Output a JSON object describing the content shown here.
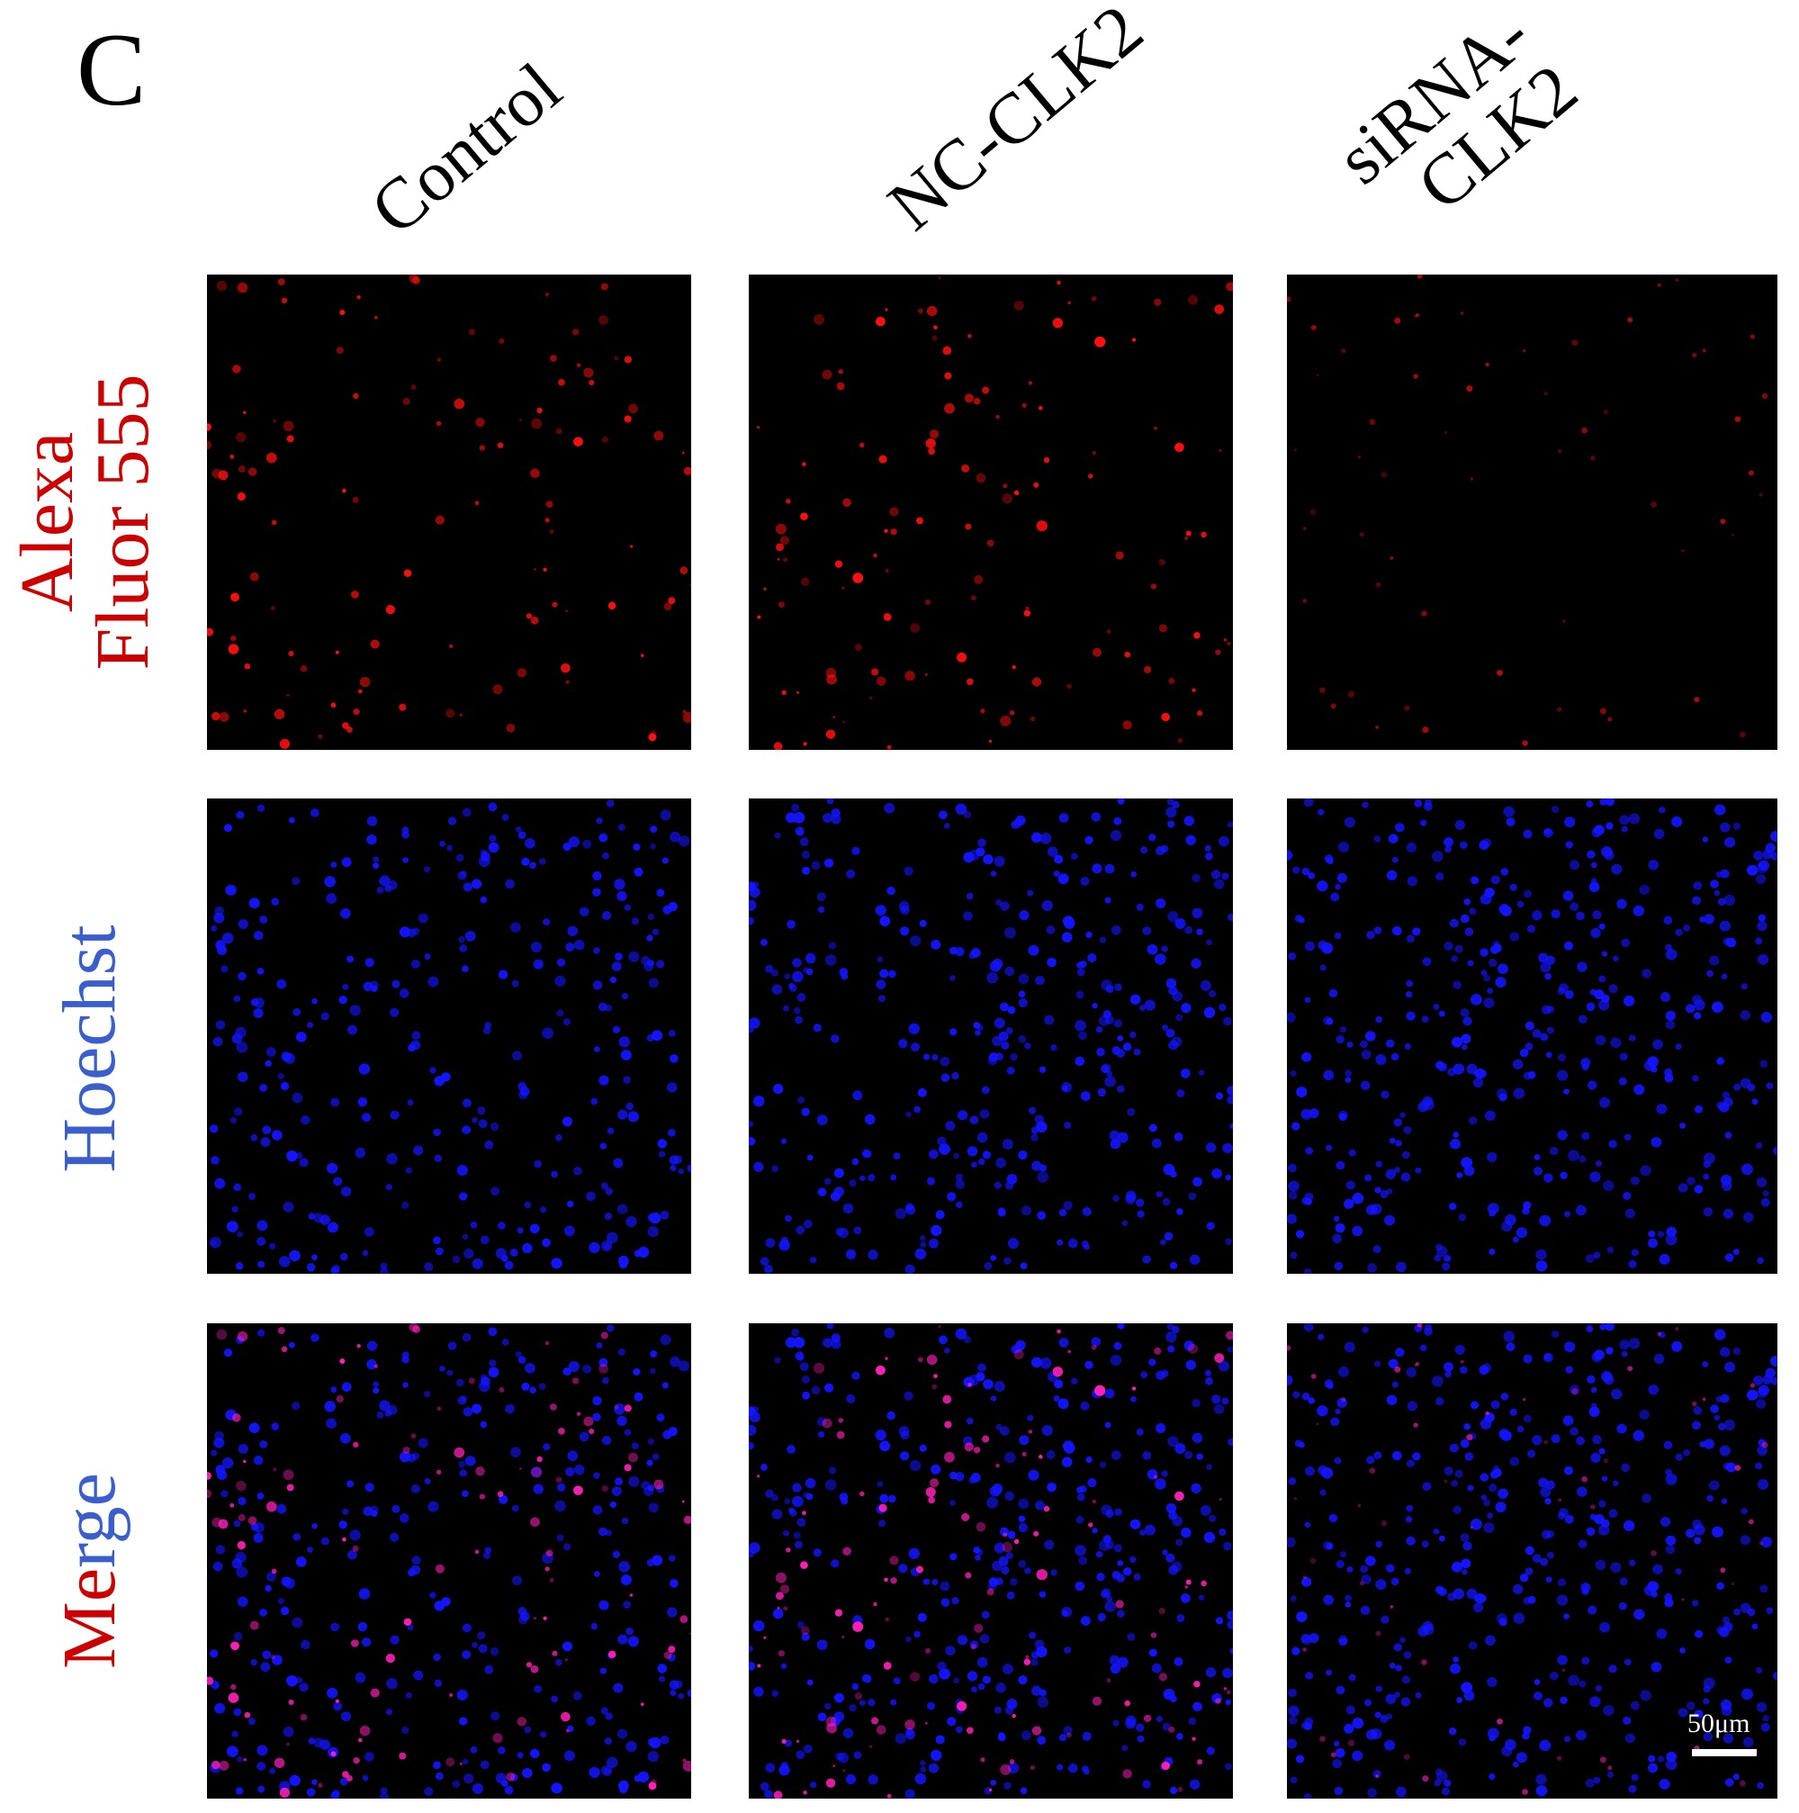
{
  "panel_letter": "C",
  "columns": [
    "Control",
    "NC-CLK2",
    "siRNA-\nCLK2"
  ],
  "rows": [
    {
      "lines": [
        "Alexa",
        "Fluor 555"
      ],
      "colors": [
        "#cc0000",
        "#cc0000"
      ]
    },
    {
      "lines": [
        "Hoechst"
      ],
      "colors": [
        "#3a5fcd"
      ]
    },
    {
      "lines": [
        "Merge"
      ],
      "colors": [
        "#cc0000"
      ],
      "highlight": {
        "text_red": "Me",
        "text_blue": "rge"
      }
    }
  ],
  "images": [
    [
      "red-fluorescence",
      "red-fluorescence",
      "red-fluorescence"
    ],
    [
      "blue-nuclei",
      "blue-nuclei",
      "blue-nuclei"
    ],
    [
      "merged",
      "merged",
      "merged"
    ]
  ],
  "scale_bar": {
    "label": "50μm"
  },
  "colors": {
    "background": "#000000",
    "red_signal": "#ff1010",
    "blue_signal": "#1a1aff",
    "merge_signal": "#ff20c0"
  }
}
